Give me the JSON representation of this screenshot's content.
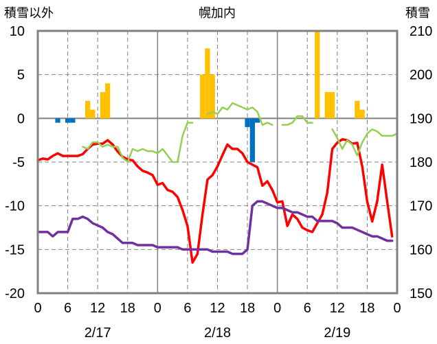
{
  "chart_data": {
    "type": "bar+line",
    "title": "幌加内",
    "left_axis_label": "積雪以外",
    "right_axis_label": "積雪",
    "left_ylim": [
      -20,
      10
    ],
    "left_ticks": [
      10,
      5,
      0,
      -5,
      -10,
      -15,
      -20
    ],
    "right_ylim": [
      150,
      210
    ],
    "right_ticks": [
      210,
      200,
      190,
      180,
      170,
      160,
      150
    ],
    "x_hours_total": 72,
    "x_tick_labels": [
      "0",
      "6",
      "12",
      "18",
      "0",
      "6",
      "12",
      "18",
      "0",
      "6",
      "12",
      "18",
      "0"
    ],
    "date_labels": [
      {
        "label": "2/17",
        "hour": 12
      },
      {
        "label": "2/18",
        "hour": 36
      },
      {
        "label": "2/19",
        "hour": 60
      }
    ],
    "colors": {
      "snowfall_bar": "#FFC000",
      "precip_bar": "#0070C0",
      "temperature_line": "#FF0000",
      "green_line": "#92D050",
      "snow_depth_line": "#7030A0",
      "grid": "#808080",
      "frame": "#808080"
    },
    "series": [
      {
        "key": "snowfall",
        "type": "bar",
        "axis": "left",
        "hour_values": [
          [
            10,
            2
          ],
          [
            11,
            1
          ],
          [
            13,
            3
          ],
          [
            14,
            4
          ],
          [
            33,
            5
          ],
          [
            34,
            8
          ],
          [
            35,
            5
          ],
          [
            56,
            10
          ],
          [
            58,
            3
          ],
          [
            59,
            3
          ],
          [
            64,
            2
          ],
          [
            65,
            1
          ]
        ]
      },
      {
        "key": "blue",
        "type": "bar",
        "axis": "left",
        "hour_values": [
          [
            4,
            -0.5
          ],
          [
            6,
            -0.5
          ],
          [
            7,
            -0.5
          ],
          [
            42,
            -1
          ],
          [
            43,
            -5
          ],
          [
            44,
            -0.5
          ]
        ]
      },
      {
        "key": "temperature",
        "type": "line",
        "axis": "left",
        "points": [
          [
            0,
            -4.8
          ],
          [
            1,
            -4.6
          ],
          [
            2,
            -4.7
          ],
          [
            3,
            -4.3
          ],
          [
            4,
            -4
          ],
          [
            5,
            -4.3
          ],
          [
            6,
            -4.3
          ],
          [
            7,
            -4.3
          ],
          [
            8,
            -4.3
          ],
          [
            9,
            -4.1
          ],
          [
            10,
            -3.5
          ],
          [
            11,
            -3
          ],
          [
            12,
            -2.9
          ],
          [
            13,
            -2.9
          ],
          [
            14,
            -2.5
          ],
          [
            15,
            -3
          ],
          [
            16,
            -3.8
          ],
          [
            17,
            -4.4
          ],
          [
            18,
            -4.7
          ],
          [
            19,
            -4.8
          ],
          [
            20,
            -5.5
          ],
          [
            21,
            -6
          ],
          [
            22,
            -6.2
          ],
          [
            23,
            -6.5
          ],
          [
            24,
            -7.6
          ],
          [
            25,
            -7.4
          ],
          [
            26,
            -8.2
          ],
          [
            27,
            -8.4
          ],
          [
            28,
            -9
          ],
          [
            29,
            -10.5
          ],
          [
            30,
            -12.3
          ],
          [
            31,
            -16.5
          ],
          [
            32,
            -15.5
          ],
          [
            33,
            -11
          ],
          [
            34,
            -7
          ],
          [
            35,
            -6.5
          ],
          [
            36,
            -5.5
          ],
          [
            37,
            -4.2
          ],
          [
            38,
            -3
          ],
          [
            39,
            -3.5
          ],
          [
            40,
            -3.5
          ],
          [
            41,
            -4
          ],
          [
            42,
            -5
          ],
          [
            43,
            -5.3
          ],
          [
            44,
            -5.6
          ],
          [
            45,
            -7.7
          ],
          [
            46,
            -7.2
          ],
          [
            47,
            -8.2
          ],
          [
            48,
            -9.6
          ],
          [
            49,
            -9.5
          ],
          [
            50,
            -12.3
          ],
          [
            51,
            -11
          ],
          [
            52,
            -11.5
          ],
          [
            53,
            -12.5
          ],
          [
            54,
            -12.8
          ],
          [
            55,
            -13
          ],
          [
            56,
            -12
          ],
          [
            57,
            -11
          ],
          [
            58,
            -8.5
          ],
          [
            59,
            -3.5
          ],
          [
            60,
            -2.8
          ],
          [
            61,
            -2.4
          ],
          [
            62,
            -2.5
          ],
          [
            63,
            -2.9
          ],
          [
            64,
            -2.8
          ],
          [
            65,
            -5.5
          ],
          [
            66,
            -9.5
          ],
          [
            67,
            -11.8
          ],
          [
            68,
            -9.5
          ],
          [
            69,
            -5.3
          ],
          [
            70,
            -9.5
          ],
          [
            71,
            -13.5
          ]
        ]
      },
      {
        "key": "green",
        "type": "line",
        "axis": "right",
        "segments": [
          [
            [
              9,
              183.5
            ],
            [
              10,
              183
            ],
            [
              11,
              184.5
            ],
            [
              12,
              184.5
            ],
            [
              13,
              183.5
            ],
            [
              14,
              184
            ],
            [
              15,
              183.5
            ],
            [
              16,
              183.5
            ],
            [
              17,
              181
            ],
            [
              18,
              180
            ],
            [
              19,
              183
            ],
            [
              20,
              182.5
            ],
            [
              21,
              183
            ],
            [
              22,
              182.5
            ],
            [
              23,
              182.5
            ],
            [
              24,
              182
            ],
            [
              25,
              183
            ],
            [
              26,
              181.5
            ],
            [
              27,
              180
            ],
            [
              28,
              180
            ],
            [
              29,
              186
            ],
            [
              30,
              189
            ],
            [
              31,
              189
            ]
          ],
          [
            [
              34,
              191
            ],
            [
              35,
              191.5
            ],
            [
              36,
              191
            ],
            [
              37,
              192.5
            ],
            [
              38,
              192
            ],
            [
              39,
              193.5
            ],
            [
              40,
              193
            ],
            [
              41,
              192.5
            ],
            [
              42,
              192
            ],
            [
              43,
              192.5
            ],
            [
              44,
              191.5
            ],
            [
              45,
              188.5
            ],
            [
              46,
              189
            ],
            [
              47,
              188.5
            ]
          ],
          [
            [
              49,
              188.5
            ],
            [
              50,
              188.5
            ],
            [
              51,
              189
            ],
            [
              52,
              190.5
            ],
            [
              53,
              190.5
            ],
            [
              54,
              189
            ],
            [
              55,
              189
            ]
          ],
          [
            [
              59,
              187.5
            ],
            [
              60,
              185.5
            ],
            [
              61,
              183
            ],
            [
              62,
              185
            ],
            [
              63,
              184
            ],
            [
              64,
              181.5
            ],
            [
              65,
              184.5
            ],
            [
              66,
              186.5
            ],
            [
              67,
              187.5
            ],
            [
              68,
              187
            ],
            [
              69,
              186
            ],
            [
              70,
              186
            ],
            [
              71,
              186
            ],
            [
              72,
              186.5
            ]
          ]
        ]
      },
      {
        "key": "snow_depth",
        "type": "line",
        "axis": "right",
        "points": [
          [
            0,
            164
          ],
          [
            1,
            164
          ],
          [
            2,
            164
          ],
          [
            3,
            163
          ],
          [
            4,
            164
          ],
          [
            5,
            164
          ],
          [
            6,
            164
          ],
          [
            7,
            167
          ],
          [
            8,
            167
          ],
          [
            9,
            167.5
          ],
          [
            10,
            167
          ],
          [
            11,
            166
          ],
          [
            12,
            165.5
          ],
          [
            13,
            165
          ],
          [
            14,
            164
          ],
          [
            15,
            163.5
          ],
          [
            16,
            162.5
          ],
          [
            17,
            161.5
          ],
          [
            18,
            161.5
          ],
          [
            19,
            161.5
          ],
          [
            20,
            161
          ],
          [
            21,
            161
          ],
          [
            22,
            161
          ],
          [
            23,
            161
          ],
          [
            24,
            160.5
          ],
          [
            25,
            160.5
          ],
          [
            26,
            160.5
          ],
          [
            27,
            160.5
          ],
          [
            28,
            160.5
          ],
          [
            29,
            160
          ],
          [
            30,
            160
          ],
          [
            31,
            160
          ],
          [
            32,
            160
          ],
          [
            33,
            160
          ],
          [
            34,
            160
          ],
          [
            35,
            159.5
          ],
          [
            36,
            159.5
          ],
          [
            37,
            159.5
          ],
          [
            38,
            159.5
          ],
          [
            39,
            159
          ],
          [
            40,
            159
          ],
          [
            41,
            159
          ],
          [
            42,
            160
          ],
          [
            43,
            170
          ],
          [
            44,
            171
          ],
          [
            45,
            171
          ],
          [
            46,
            170.5
          ],
          [
            47,
            170
          ],
          [
            48,
            169.5
          ],
          [
            49,
            169.5
          ],
          [
            50,
            169
          ],
          [
            51,
            168.5
          ],
          [
            52,
            168.5
          ],
          [
            53,
            168
          ],
          [
            54,
            167.5
          ],
          [
            55,
            167.5
          ],
          [
            56,
            166.5
          ],
          [
            57,
            166.5
          ],
          [
            58,
            166.5
          ],
          [
            59,
            166.5
          ],
          [
            60,
            166
          ],
          [
            61,
            165
          ],
          [
            62,
            165
          ],
          [
            63,
            165
          ],
          [
            64,
            164.5
          ],
          [
            65,
            164
          ],
          [
            66,
            163.5
          ],
          [
            67,
            163
          ],
          [
            68,
            163
          ],
          [
            69,
            162.5
          ],
          [
            70,
            162
          ],
          [
            71,
            162
          ]
        ]
      }
    ]
  }
}
